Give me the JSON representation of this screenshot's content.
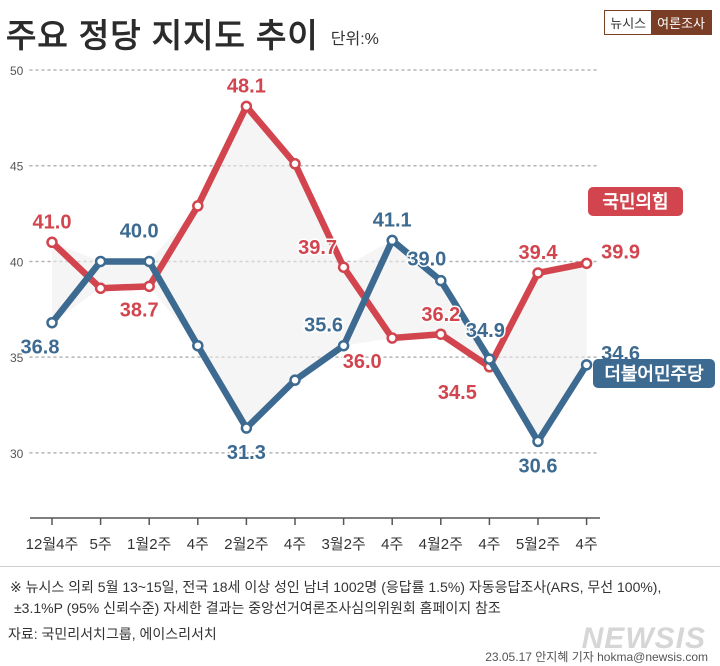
{
  "header": {
    "title": "주요 정당 지지도 추이",
    "unit": "단위:%",
    "logo_left": "뉴시스",
    "logo_right": "여론조사"
  },
  "chart_data": {
    "type": "line",
    "categories": [
      "12월4주",
      "5주",
      "1월2주",
      "4주",
      "2월2주",
      "4주",
      "3월2주",
      "4주",
      "4월2주",
      "4주",
      "5월2주",
      "4주"
    ],
    "y_ticks": [
      50,
      45,
      40,
      35,
      30
    ],
    "ylim": [
      26.6,
      50
    ],
    "grid": true,
    "legend": "right",
    "series": [
      {
        "name": "국민의힘",
        "color": "#d2454e",
        "values": [
          41.0,
          38.6,
          38.7,
          42.9,
          48.1,
          45.1,
          39.7,
          36.0,
          36.2,
          34.5,
          39.4,
          39.9
        ],
        "labels": [
          "41.0",
          "",
          "38.7",
          "",
          "48.1",
          "",
          "39.7",
          "36.0",
          "36.2",
          "34.5",
          "39.4",
          "39.9"
        ]
      },
      {
        "name": "더불어민주당",
        "color": "#3d6a90",
        "values": [
          36.8,
          40.0,
          40.0,
          35.6,
          31.3,
          33.8,
          35.6,
          41.1,
          39.0,
          34.9,
          30.6,
          34.6
        ],
        "labels": [
          "36.8",
          "",
          "40.0",
          "",
          "31.3",
          "",
          "35.6",
          "41.1",
          "39.0",
          "34.9",
          "30.6",
          "34.6"
        ]
      }
    ]
  },
  "footnote": {
    "line1": "※ 뉴시스 의뢰 5월 13~15일, 전국 18세 이상 성인 남녀 1002명 (응답률 1.5%) 자동응답조사(ARS, 무선 100%),",
    "line2": "±3.1%P (95% 신뢰수준) 자세한 결과는 중앙선거여론조사심의위원회 홈페이지 참조"
  },
  "source": "자료: 국민리서치그룹, 에이스리서치",
  "watermark": "NEWSIS",
  "credit": "23.05.17 안지혜 기자 hokma@newsis.com"
}
